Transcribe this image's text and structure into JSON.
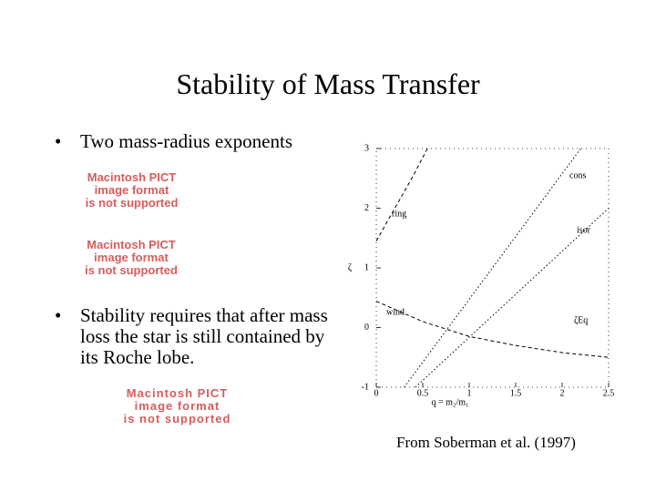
{
  "slide": {
    "title": "Stability of Mass Transfer",
    "bullets": [
      "Two mass-radius exponents",
      "Stability requires that after mass loss the star is still contained by its Roche lobe."
    ],
    "placeholders": [
      "Macintosh PICT\nimage format\nis not supported",
      "Macintosh PICT\nimage format\nis not supported",
      "Macintosh PICT\nimage format\nis not supported"
    ],
    "caption": "From Soberman et al. (1997)"
  },
  "chart_data": {
    "type": "line",
    "xlabel": "q = m₂/m₁",
    "ylabel": "ζ",
    "annotation": "ζEq",
    "xlim": [
      0,
      2.5
    ],
    "xticks": [
      0,
      0.5,
      1,
      1.5,
      2,
      2.5
    ],
    "ylim": [
      -1,
      3
    ],
    "yticks": [
      -1,
      0,
      1,
      2,
      3
    ],
    "series": [
      {
        "name": "ring",
        "color": "#000000",
        "style": "dashed",
        "x": [
          0,
          0.2,
          0.4,
          0.55
        ],
        "values": [
          1.45,
          2.0,
          2.55,
          3
        ]
      },
      {
        "name": "cons",
        "color": "#000000",
        "style": "dotted",
        "x": [
          0.3,
          2.2
        ],
        "values": [
          -1,
          3
        ]
      },
      {
        "name": "isor",
        "color": "#000000",
        "style": "dotted",
        "x": [
          0.42,
          2.5
        ],
        "values": [
          -1,
          2.0
        ]
      },
      {
        "name": "wind",
        "color": "#000000",
        "style": "dashed",
        "x": [
          0,
          0.5,
          1,
          1.5,
          2,
          2.5
        ],
        "values": [
          0.44,
          0.1,
          -0.15,
          -0.3,
          -0.42,
          -0.5
        ]
      }
    ]
  }
}
